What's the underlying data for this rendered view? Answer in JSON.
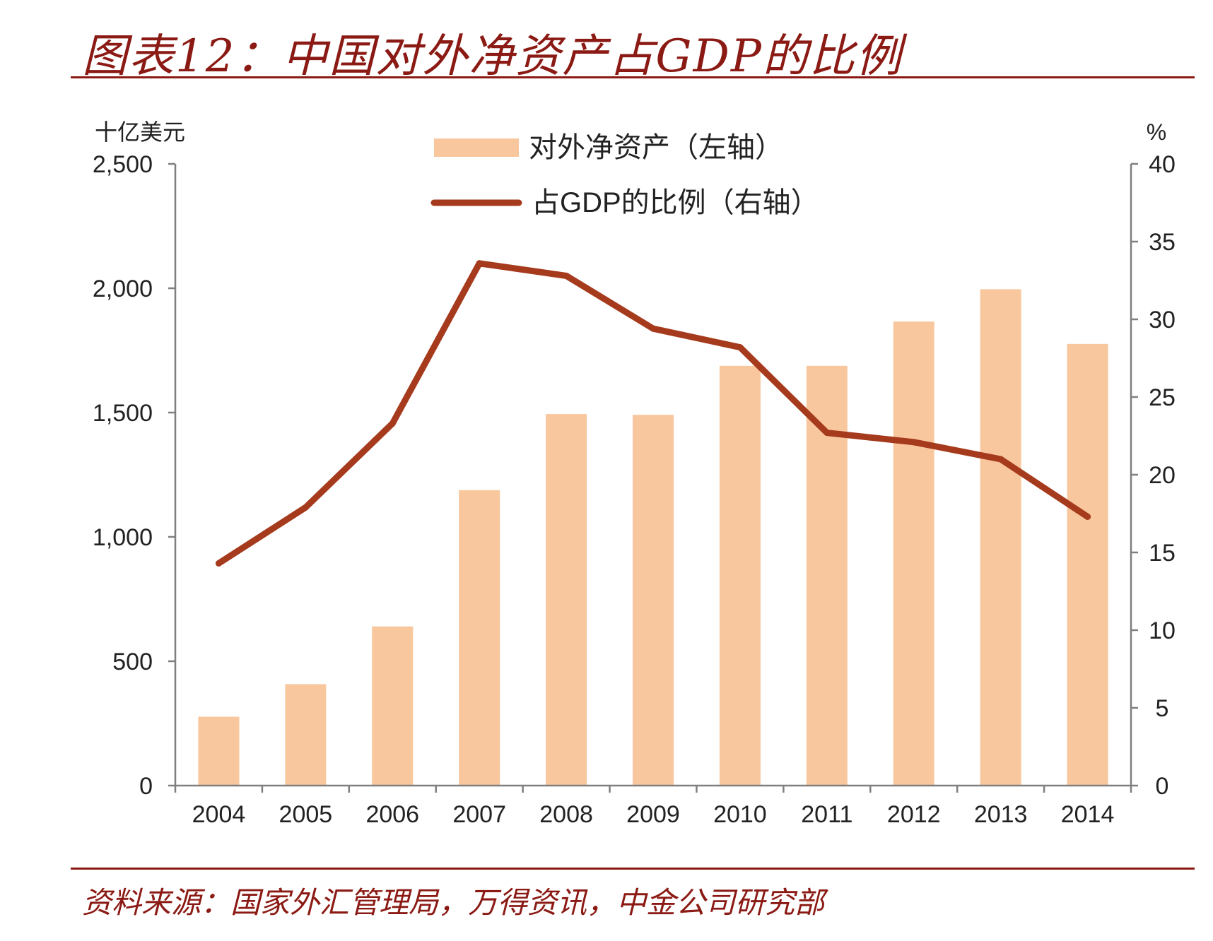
{
  "title": "图表12：中国对外净资产占GDP的比例",
  "source": "资料来源：国家外汇管理局，万得资讯，中金公司研究部",
  "colors": {
    "bar": "#f9c79e",
    "line": "#a63a1d",
    "accent": "#8b1a14",
    "axis": "#7f7f7f"
  },
  "chart_data": {
    "type": "bar",
    "title": "图表12：中国对外净资产占GDP的比例",
    "categories": [
      "2004",
      "2005",
      "2006",
      "2007",
      "2008",
      "2009",
      "2010",
      "2011",
      "2012",
      "2013",
      "2014"
    ],
    "series": [
      {
        "name": "对外净资产（左轴）",
        "type": "bar",
        "axis": "left",
        "values": [
          277,
          408,
          640,
          1188,
          1494,
          1491,
          1688,
          1688,
          1866,
          1996,
          1776
        ]
      },
      {
        "name": "占GDP的比例（右轴）",
        "type": "line",
        "axis": "right",
        "values": [
          14.3,
          17.9,
          23.3,
          33.6,
          32.8,
          29.4,
          28.2,
          22.7,
          22.1,
          21.0,
          17.3
        ]
      }
    ],
    "left_axis": {
      "label": "十亿美元",
      "ylim": [
        0,
        2500
      ],
      "ticks": [
        0,
        500,
        1000,
        1500,
        2000,
        2500
      ],
      "tick_labels": [
        "0",
        "500",
        "1,000",
        "1,500",
        "2,000",
        "2,500"
      ]
    },
    "right_axis": {
      "label": "%",
      "ylim": [
        0,
        40
      ],
      "ticks": [
        0,
        5,
        10,
        15,
        20,
        25,
        30,
        35,
        40
      ],
      "tick_labels": [
        "0",
        "5",
        "10",
        "15",
        "20",
        "25",
        "30",
        "35",
        "40"
      ]
    },
    "legend": {
      "position": "top-center",
      "items": [
        "对外净资产（左轴）",
        "占GDP的比例（右轴）"
      ]
    },
    "grid": false
  }
}
